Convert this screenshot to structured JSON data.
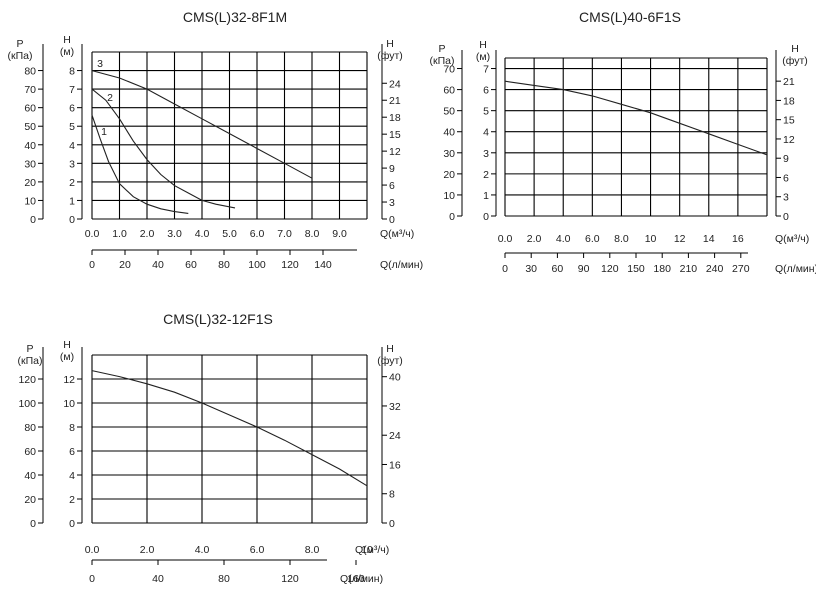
{
  "chart_data": [
    {
      "type": "line",
      "title": "CMS(L)32-8F1M",
      "xlabel": "Q(м³/ч)",
      "x_ticks": [
        "0.0",
        "1.0",
        "2.0",
        "3.0",
        "4.0",
        "5.0",
        "6.0",
        "7.0",
        "8.0",
        "9.0"
      ],
      "xlim": [
        0,
        10
      ],
      "ylabel_left_p": "P\n(кПа)",
      "p_ticks": [
        "0",
        "10",
        "20",
        "30",
        "40",
        "50",
        "60",
        "70",
        "80"
      ],
      "ylabel_h": "H\n(м)",
      "h_ticks": [
        "0",
        "1",
        "2",
        "3",
        "4",
        "5",
        "6",
        "7",
        "8"
      ],
      "ylim": [
        0,
        9
      ],
      "ylabel_right": "H\n(фут)",
      "ft_ticks": [
        "0",
        "3",
        "6",
        "9",
        "12",
        "15",
        "18",
        "21",
        "24"
      ],
      "x2label": "Q(л/мин)",
      "x2_ticks": [
        0,
        20,
        40,
        60,
        80,
        100,
        120,
        140
      ],
      "series": [
        {
          "name": "1",
          "x": [
            0,
            0.3,
            0.6,
            1.0,
            1.5,
            2.0,
            2.5,
            3.0,
            3.5
          ],
          "y": [
            5.6,
            4.3,
            3.1,
            1.9,
            1.2,
            0.8,
            0.55,
            0.4,
            0.3
          ]
        },
        {
          "name": "2",
          "x": [
            0,
            0.5,
            1.0,
            1.5,
            2.0,
            2.5,
            3.0,
            3.5,
            4.0,
            4.5,
            5.2
          ],
          "y": [
            7.0,
            6.4,
            5.4,
            4.2,
            3.2,
            2.4,
            1.8,
            1.4,
            1.0,
            0.8,
            0.6
          ]
        },
        {
          "name": "3",
          "x": [
            0,
            1.0,
            2.0,
            3.0,
            4.0,
            5.0,
            6.0,
            7.0,
            8.0
          ],
          "y": [
            8.0,
            7.6,
            7.0,
            6.2,
            5.4,
            4.6,
            3.8,
            3.0,
            2.2
          ]
        }
      ]
    },
    {
      "type": "line",
      "title": "CMS(L)40-6F1S",
      "xlabel": "Q(м³/ч)",
      "x_ticks": [
        "0.0",
        "2.0",
        "4.0",
        "6.0",
        "8.0",
        "10",
        "12",
        "14",
        "16"
      ],
      "xlim": [
        0,
        18
      ],
      "ylabel_left_p": "P\n(кПа)",
      "p_ticks": [
        "0",
        "10",
        "20",
        "30",
        "40",
        "50",
        "60",
        "70"
      ],
      "ylabel_h": "H\n(м)",
      "h_ticks": [
        "0",
        "1",
        "2",
        "3",
        "4",
        "5",
        "6",
        "7"
      ],
      "ylim": [
        0,
        7.5
      ],
      "ylabel_right": "H\n(фут)",
      "ft_ticks": [
        "0",
        "3",
        "6",
        "9",
        "12",
        "15",
        "18",
        "21"
      ],
      "x2label": "Q(л/мин)",
      "x2_ticks": [
        0,
        30,
        60,
        90,
        120,
        150,
        180,
        210,
        240,
        270
      ],
      "series": [
        {
          "x": [
            0,
            2,
            4,
            6,
            8,
            10,
            12,
            14,
            16,
            18
          ],
          "y": [
            6.4,
            6.2,
            6.0,
            5.7,
            5.3,
            4.9,
            4.4,
            3.9,
            3.4,
            2.9
          ]
        }
      ]
    },
    {
      "type": "line",
      "title": "CMS(L)32-12F1S",
      "xlabel": "Q(м³/ч)",
      "x_ticks": [
        "0.0",
        "2.0",
        "4.0",
        "6.0",
        "8.0",
        "10"
      ],
      "xlim": [
        0,
        10
      ],
      "ylabel_left_p": "P\n(кПа)",
      "p_ticks": [
        "0",
        "20",
        "40",
        "60",
        "80",
        "100",
        "120"
      ],
      "ylabel_h": "H\n(м)",
      "h_ticks": [
        "0",
        "2",
        "4",
        "6",
        "8",
        "10",
        "12"
      ],
      "ylim": [
        0,
        14
      ],
      "ylabel_right": "H\n(фут)",
      "ft_ticks": [
        "0",
        "8",
        "16",
        "24",
        "32",
        "40"
      ],
      "x2label": "Q(л/мин)",
      "x2_ticks": [
        0,
        40,
        80,
        120,
        160
      ],
      "series": [
        {
          "x": [
            0,
            1,
            2,
            3,
            4,
            5,
            6,
            7,
            8,
            9,
            10
          ],
          "y": [
            12.7,
            12.2,
            11.6,
            10.9,
            10.0,
            9.0,
            8.0,
            6.9,
            5.7,
            4.5,
            3.1
          ]
        }
      ]
    }
  ]
}
